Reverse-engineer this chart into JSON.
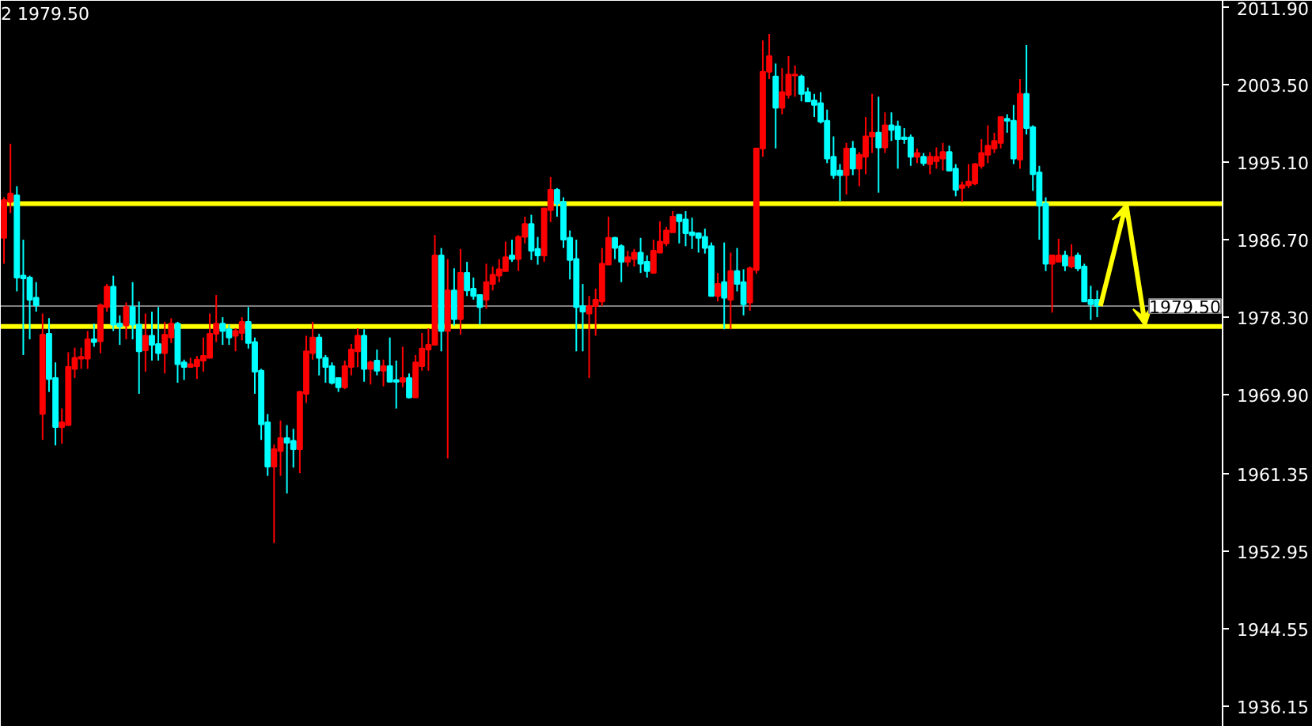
{
  "chart_data": {
    "type": "candlestick",
    "title": "2 1979.50",
    "categories": [
      null,
      null,
      null,
      null,
      null,
      null,
      null,
      null,
      null,
      null,
      null,
      null,
      null,
      null,
      null,
      null,
      null,
      null,
      null,
      null,
      null,
      null,
      null,
      null,
      null,
      null,
      null,
      null,
      null,
      null,
      null,
      null,
      null,
      null,
      null,
      null,
      null,
      null,
      null,
      null,
      null,
      null,
      null,
      null,
      null,
      null,
      null,
      null,
      null,
      null,
      null,
      null,
      null,
      null,
      null,
      null,
      null,
      null,
      null,
      null,
      null,
      null,
      null,
      null,
      null,
      null,
      null,
      null,
      null,
      null,
      null,
      null,
      null,
      null,
      null,
      null,
      null,
      null,
      null,
      null,
      null,
      null,
      null,
      null,
      null,
      null,
      null,
      null,
      null,
      null,
      null,
      null,
      null,
      null,
      null,
      null,
      null,
      null,
      null,
      null,
      null,
      null,
      null,
      null,
      null,
      null,
      null,
      null,
      null,
      null,
      null,
      null,
      null,
      null,
      null,
      null,
      null,
      null,
      null,
      null,
      null,
      null,
      null,
      null,
      null,
      null,
      null,
      null,
      null,
      null,
      null,
      null,
      null,
      null,
      null,
      null,
      null,
      null,
      null,
      null,
      null,
      null,
      null,
      null,
      null,
      null,
      null,
      null,
      null,
      null,
      null,
      null,
      null,
      null,
      null,
      null,
      null,
      null,
      null,
      null,
      null,
      null,
      null,
      null,
      null,
      null,
      null,
      null,
      null,
      null,
      null,
      null,
      null,
      null,
      null,
      null,
      null,
      null,
      null,
      null,
      null,
      null,
      null,
      null,
      null,
      null,
      null,
      null,
      null,
      null
    ],
    "ohlc": [
      [
        1986.9,
        1991.3,
        1984.1,
        1991.0
      ],
      [
        1990.8,
        1997.1,
        1989.6,
        1991.7
      ],
      [
        1991.5,
        1992.5,
        1981.1,
        1982.6
      ],
      [
        1982.8,
        1986.7,
        1974.2,
        1982.5
      ],
      [
        1982.6,
        1982.8,
        1975.9,
        1980.2
      ],
      [
        1980.4,
        1982.1,
        1978.9,
        1979.6
      ],
      [
        1967.8,
        1978.7,
        1965.0,
        1976.4
      ],
      [
        1976.5,
        1978.2,
        1970.2,
        1971.6
      ],
      [
        1971.7,
        1973.4,
        1964.4,
        1966.4
      ],
      [
        1966.4,
        1968.4,
        1964.6,
        1966.9
      ],
      [
        1966.6,
        1974.5,
        1966.6,
        1972.9
      ],
      [
        1972.7,
        1975.0,
        1971.7,
        1973.9
      ],
      [
        1973.8,
        1975.0,
        1972.7,
        1974.0
      ],
      [
        1973.8,
        1976.8,
        1972.7,
        1975.9
      ],
      [
        1975.9,
        1977.6,
        1975.1,
        1975.6
      ],
      [
        1975.7,
        1979.8,
        1974.4,
        1979.6
      ],
      [
        1979.4,
        1981.9,
        1978.9,
        1981.6
      ],
      [
        1981.6,
        1982.8,
        1976.8,
        1977.5
      ],
      [
        1977.6,
        1978.5,
        1975.3,
        1977.3
      ],
      [
        1977.4,
        1979.9,
        1975.9,
        1979.4
      ],
      [
        1979.4,
        1982.1,
        1975.9,
        1977.5
      ],
      [
        1977.5,
        1980.0,
        1970.0,
        1974.6
      ],
      [
        1974.7,
        1978.7,
        1972.4,
        1976.3
      ],
      [
        1976.3,
        1978.9,
        1973.6,
        1975.3
      ],
      [
        1975.4,
        1979.4,
        1973.6,
        1974.4
      ],
      [
        1974.4,
        1977.8,
        1972.2,
        1976.4
      ],
      [
        1976.1,
        1978.2,
        1975.5,
        1977.6
      ],
      [
        1977.6,
        1977.8,
        1971.2,
        1973.2
      ],
      [
        1973.4,
        1973.7,
        1971.5,
        1972.9
      ],
      [
        1972.9,
        1973.9,
        1972.9,
        1973.2
      ],
      [
        1973.0,
        1974.1,
        1971.6,
        1973.7
      ],
      [
        1973.6,
        1976.1,
        1972.4,
        1974.1
      ],
      [
        1973.9,
        1978.7,
        1973.9,
        1976.5
      ],
      [
        1976.5,
        1980.7,
        1975.6,
        1977.6
      ],
      [
        1977.6,
        1978.3,
        1975.3,
        1976.8
      ],
      [
        1977.0,
        1977.5,
        1975.3,
        1976.1
      ],
      [
        1976.3,
        1977.1,
        1974.6,
        1976.8
      ],
      [
        1976.6,
        1978.3,
        1975.8,
        1977.8
      ],
      [
        1977.8,
        1979.4,
        1974.9,
        1975.5
      ],
      [
        1975.6,
        1976.1,
        1970.0,
        1972.4
      ],
      [
        1972.5,
        1972.7,
        1965.0,
        1966.7
      ],
      [
        1966.9,
        1967.8,
        1961.1,
        1962.1
      ],
      [
        1962.1,
        1964.5,
        1953.8,
        1964.0
      ],
      [
        1963.8,
        1967.1,
        1961.1,
        1965.2
      ],
      [
        1965.2,
        1966.6,
        1959.2,
        1964.7
      ],
      [
        1964.9,
        1966.2,
        1962.0,
        1964.0
      ],
      [
        1964.0,
        1970.3,
        1961.4,
        1970.2
      ],
      [
        1970.0,
        1976.3,
        1969.0,
        1974.6
      ],
      [
        1974.4,
        1977.8,
        1973.7,
        1976.1
      ],
      [
        1976.1,
        1976.5,
        1972.0,
        1973.9
      ],
      [
        1973.9,
        1974.2,
        1971.2,
        1972.9
      ],
      [
        1973.0,
        1973.4,
        1971.0,
        1971.2
      ],
      [
        1971.7,
        1971.7,
        1970.2,
        1970.7
      ],
      [
        1970.7,
        1973.6,
        1970.5,
        1973.0
      ],
      [
        1972.9,
        1975.4,
        1972.0,
        1974.8
      ],
      [
        1974.6,
        1977.1,
        1972.9,
        1976.3
      ],
      [
        1976.3,
        1977.0,
        1971.3,
        1972.7
      ],
      [
        1972.7,
        1973.6,
        1971.0,
        1973.4
      ],
      [
        1973.6,
        1974.8,
        1972.0,
        1972.5
      ],
      [
        1972.5,
        1973.7,
        1970.8,
        1973.0
      ],
      [
        1973.0,
        1976.1,
        1971.3,
        1971.3
      ],
      [
        1971.5,
        1973.6,
        1968.4,
        1971.3
      ],
      [
        1971.3,
        1975.1,
        1970.7,
        1971.7
      ],
      [
        1971.7,
        1972.2,
        1969.5,
        1969.6
      ],
      [
        1969.6,
        1974.2,
        1969.6,
        1973.4
      ],
      [
        1973.0,
        1976.6,
        1972.5,
        1974.9
      ],
      [
        1974.8,
        1977.1,
        1972.5,
        1975.3
      ],
      [
        1975.3,
        1987.2,
        1975.3,
        1985.0
      ],
      [
        1985.0,
        1985.8,
        1974.6,
        1976.8
      ],
      [
        1976.8,
        1984.6,
        1963.0,
        1981.2
      ],
      [
        1981.2,
        1983.6,
        1977.4,
        1978.1
      ],
      [
        1978.1,
        1985.7,
        1976.4,
        1983.1
      ],
      [
        1983.1,
        1984.3,
        1980.6,
        1981.2
      ],
      [
        1981.4,
        1982.6,
        1980.2,
        1980.6
      ],
      [
        1980.7,
        1980.7,
        1977.5,
        1979.4
      ],
      [
        1980.2,
        1984.1,
        1979.2,
        1982.1
      ],
      [
        1981.9,
        1983.8,
        1981.2,
        1982.9
      ],
      [
        1982.8,
        1984.6,
        1982.1,
        1983.5
      ],
      [
        1983.3,
        1986.5,
        1983.3,
        1984.8
      ],
      [
        1985.0,
        1986.7,
        1984.3,
        1984.6
      ],
      [
        1984.6,
        1987.2,
        1983.3,
        1987.0
      ],
      [
        1987.0,
        1989.2,
        1986.3,
        1988.4
      ],
      [
        1988.4,
        1989.4,
        1984.5,
        1985.5
      ],
      [
        1985.7,
        1987.0,
        1984.0,
        1985.0
      ],
      [
        1985.0,
        1990.1,
        1984.3,
        1990.1
      ],
      [
        1989.9,
        1993.5,
        1988.6,
        1992.1
      ],
      [
        1992.1,
        1992.3,
        1989.2,
        1990.6
      ],
      [
        1990.8,
        1991.3,
        1985.8,
        1986.7
      ],
      [
        1986.9,
        1987.7,
        1982.4,
        1984.5
      ],
      [
        1984.6,
        1986.7,
        1974.6,
        1979.4
      ],
      [
        1979.5,
        1981.9,
        1974.6,
        1978.9
      ],
      [
        1978.7,
        1980.6,
        1971.7,
        1979.5
      ],
      [
        1979.5,
        1981.4,
        1976.3,
        1980.2
      ],
      [
        1980.0,
        1985.8,
        1979.5,
        1984.1
      ],
      [
        1984.0,
        1989.2,
        1984.0,
        1986.9
      ],
      [
        1986.9,
        1987.0,
        1984.6,
        1985.8
      ],
      [
        1986.0,
        1986.2,
        1982.1,
        1984.3
      ],
      [
        1984.3,
        1985.5,
        1983.8,
        1984.8
      ],
      [
        1984.6,
        1985.7,
        1983.8,
        1985.3
      ],
      [
        1985.3,
        1986.9,
        1983.1,
        1984.1
      ],
      [
        1984.3,
        1985.0,
        1982.6,
        1983.3
      ],
      [
        1983.1,
        1986.7,
        1983.0,
        1985.5
      ],
      [
        1985.3,
        1988.7,
        1985.3,
        1986.5
      ],
      [
        1986.3,
        1988.1,
        1986.0,
        1987.7
      ],
      [
        1987.5,
        1989.8,
        1987.5,
        1989.2
      ],
      [
        1989.4,
        1989.4,
        1986.3,
        1988.7
      ],
      [
        1988.9,
        1989.8,
        1986.0,
        1987.4
      ],
      [
        1987.5,
        1989.1,
        1985.7,
        1987.2
      ],
      [
        1987.4,
        1987.5,
        1985.3,
        1986.9
      ],
      [
        1987.0,
        1987.9,
        1985.2,
        1985.8
      ],
      [
        1986.0,
        1986.4,
        1980.6,
        1980.6
      ],
      [
        1980.6,
        1983.1,
        1980.0,
        1981.9
      ],
      [
        1982.1,
        1986.4,
        1977.0,
        1980.4
      ],
      [
        1980.2,
        1985.3,
        1977.0,
        1983.3
      ],
      [
        1983.3,
        1985.8,
        1981.1,
        1981.9
      ],
      [
        1982.1,
        1983.5,
        1978.5,
        1979.7
      ],
      [
        1979.9,
        1983.8,
        1979.0,
        1983.6
      ],
      [
        1983.4,
        1996.6,
        1983.0,
        1996.6
      ],
      [
        1996.6,
        2008.3,
        1995.7,
        2004.9
      ],
      [
        2004.9,
        2009.0,
        2004.1,
        2006.6
      ],
      [
        2004.4,
        2005.8,
        1996.6,
        2001.0
      ],
      [
        2001.0,
        2005.3,
        2000.3,
        2002.7
      ],
      [
        2002.4,
        2006.6,
        2002.0,
        2004.6
      ],
      [
        2004.5,
        2005.6,
        2002.2,
        2004.6
      ],
      [
        2004.4,
        2004.6,
        2001.7,
        2002.5
      ],
      [
        2002.7,
        2003.2,
        2001.7,
        2001.7
      ],
      [
        2001.8,
        2002.5,
        2000.0,
        2001.3
      ],
      [
        2001.5,
        2002.7,
        1999.3,
        1999.5
      ],
      [
        1999.6,
        2000.8,
        1995.0,
        1995.5
      ],
      [
        1995.7,
        1997.9,
        1993.3,
        1993.7
      ],
      [
        1994.2,
        1994.9,
        1990.9,
        1993.7
      ],
      [
        1993.7,
        1997.2,
        1991.6,
        1996.6
      ],
      [
        1996.6,
        1997.4,
        1993.7,
        1994.4
      ],
      [
        1994.4,
        1996.2,
        1992.5,
        1995.9
      ],
      [
        1995.7,
        2000.0,
        1993.8,
        1997.9
      ],
      [
        1997.9,
        2002.5,
        1996.1,
        1998.3
      ],
      [
        1998.3,
        2002.2,
        1991.8,
        1996.7
      ],
      [
        1996.7,
        2000.5,
        1996.1,
        1999.1
      ],
      [
        1999.1,
        2000.5,
        1997.4,
        1998.6
      ],
      [
        1999.0,
        1999.6,
        1994.4,
        1997.6
      ],
      [
        1997.8,
        1998.8,
        1997.1,
        1997.6
      ],
      [
        1997.8,
        1998.1,
        1994.7,
        1995.7
      ],
      [
        1995.7,
        1996.6,
        1995.0,
        1996.1
      ],
      [
        1995.7,
        1996.1,
        1994.7,
        1995.0
      ],
      [
        1994.9,
        1996.2,
        1993.8,
        1995.7
      ],
      [
        1995.2,
        1996.7,
        1994.4,
        1995.7
      ],
      [
        1995.5,
        1997.2,
        1994.2,
        1996.2
      ],
      [
        1996.2,
        1996.9,
        1994.2,
        1994.2
      ],
      [
        1994.4,
        1994.9,
        1991.4,
        1992.1
      ],
      [
        1992.3,
        1993.0,
        1990.8,
        1992.6
      ],
      [
        1992.6,
        1994.9,
        1992.3,
        1993.0
      ],
      [
        1992.8,
        1995.0,
        1992.6,
        1994.9
      ],
      [
        1994.7,
        1997.6,
        1994.4,
        1996.1
      ],
      [
        1995.9,
        1999.1,
        1995.0,
        1996.9
      ],
      [
        1996.6,
        1998.3,
        1996.1,
        1997.4
      ],
      [
        1997.2,
        2000.0,
        1996.6,
        2000.0
      ],
      [
        1999.8,
        2000.3,
        1998.3,
        1999.6
      ],
      [
        1999.6,
        2001.3,
        1994.9,
        1995.5
      ],
      [
        1995.4,
        2004.1,
        1994.4,
        2002.5
      ],
      [
        2002.5,
        2007.8,
        1998.1,
        1998.8
      ],
      [
        1998.9,
        1999.1,
        1992.0,
        1993.8
      ],
      [
        1994.0,
        1994.7,
        1986.7,
        1990.4
      ],
      [
        1990.6,
        1991.3,
        1983.3,
        1984.1
      ],
      [
        1984.1,
        1985.1,
        1978.8,
        1985.0
      ],
      [
        1984.3,
        1986.8,
        1984.3,
        1985.0
      ],
      [
        1985.0,
        1985.5,
        1983.3,
        1983.9
      ],
      [
        1983.8,
        1986.2,
        1983.6,
        1984.8
      ],
      [
        1985.0,
        1985.3,
        1983.3,
        1983.6
      ],
      [
        1983.8,
        1984.1,
        1980.0,
        1980.0
      ],
      [
        1980.2,
        1981.7,
        1978.0,
        1979.7
      ],
      [
        1980.2,
        1981.2,
        1978.3,
        1979.5
      ],
      null,
      null,
      null,
      null,
      null,
      null,
      null,
      null,
      null,
      null,
      null,
      null,
      null,
      null,
      null,
      null,
      null,
      null,
      null
    ],
    "colors": [
      "#ff0000",
      "#ff0000",
      "#00ffff",
      "#00ffff",
      "#00ffff",
      "#00ffff",
      "#ff0000",
      "#00ffff",
      "#00ffff",
      "#ff0000",
      "#ff0000",
      "#ff0000",
      "#ff0000",
      "#ff0000",
      "#00ffff",
      "#ff0000",
      "#ff0000",
      "#00ffff",
      "#00ffff",
      "#ff0000",
      "#00ffff",
      "#00ffff",
      "#ff0000",
      "#00ffff",
      "#00ffff",
      "#ff0000",
      "#ff0000",
      "#00ffff",
      "#00ffff",
      "#ff0000",
      "#ff0000",
      "#ff0000",
      "#ff0000",
      "#ff0000",
      "#00ffff",
      "#00ffff",
      "#ff0000",
      "#ff0000",
      "#00ffff",
      "#00ffff",
      "#00ffff",
      "#00ffff",
      "#ff0000",
      "#ff0000",
      "#00ffff",
      "#00ffff",
      "#ff0000",
      "#ff0000",
      "#ff0000",
      "#00ffff",
      "#00ffff",
      "#00ffff",
      "#00ffff",
      "#ff0000",
      "#ff0000",
      "#ff0000",
      "#00ffff",
      "#ff0000",
      "#00ffff",
      "#ff0000",
      "#00ffff",
      "#00ffff",
      "#ff0000",
      "#00ffff",
      "#ff0000",
      "#ff0000",
      "#ff0000",
      "#ff0000",
      "#00ffff",
      "#ff0000",
      "#00ffff",
      "#ff0000",
      "#00ffff",
      "#00ffff",
      "#00ffff",
      "#ff0000",
      "#ff0000",
      "#ff0000",
      "#ff0000",
      "#00ffff",
      "#ff0000",
      "#ff0000",
      "#00ffff",
      "#00ffff",
      "#ff0000",
      "#ff0000",
      "#00ffff",
      "#00ffff",
      "#00ffff",
      "#00ffff",
      "#00ffff",
      "#ff0000",
      "#ff0000",
      "#ff0000",
      "#ff0000",
      "#00ffff",
      "#00ffff",
      "#ff0000",
      "#ff0000",
      "#00ffff",
      "#00ffff",
      "#ff0000",
      "#ff0000",
      "#ff0000",
      "#ff0000",
      "#00ffff",
      "#00ffff",
      "#00ffff",
      "#00ffff",
      "#00ffff",
      "#00ffff",
      "#ff0000",
      "#00ffff",
      "#ff0000",
      "#00ffff",
      "#00ffff",
      "#ff0000",
      "#ff0000",
      "#ff0000",
      "#ff0000",
      "#00ffff",
      "#ff0000",
      "#ff0000",
      "#ff0000",
      "#00ffff",
      "#00ffff",
      "#00ffff",
      "#00ffff",
      "#00ffff",
      "#00ffff",
      "#00ffff",
      "#ff0000",
      "#00ffff",
      "#ff0000",
      "#ff0000",
      "#ff0000",
      "#00ffff",
      "#ff0000",
      "#00ffff",
      "#00ffff",
      "#00ffff",
      "#00ffff",
      "#ff0000",
      "#00ffff",
      "#ff0000",
      "#ff0000",
      "#ff0000",
      "#00ffff",
      "#00ffff",
      "#ff0000",
      "#ff0000",
      "#ff0000",
      "#ff0000",
      "#ff0000",
      "#ff0000",
      "#ff0000",
      "#00ffff",
      "#00ffff",
      "#ff0000",
      "#00ffff",
      "#00ffff",
      "#00ffff",
      "#00ffff",
      "#ff0000",
      "#ff0000",
      "#00ffff",
      "#ff0000",
      "#00ffff",
      "#00ffff",
      "#00ffff",
      "#00ffff",
      null,
      null,
      null,
      null,
      null,
      null,
      null,
      null,
      null,
      null,
      null,
      null,
      null,
      null,
      null,
      null,
      null,
      null,
      null
    ],
    "ylim": [
      1933.9,
      2012.6
    ],
    "yticks": [
      {
        "value": 2011.9,
        "label": "2011.90"
      },
      {
        "value": 2003.5,
        "label": "2003.50"
      },
      {
        "value": 1995.1,
        "label": "1995.10"
      },
      {
        "value": 1986.7,
        "label": "1986.70"
      },
      {
        "value": 1978.3,
        "label": "1978.30"
      },
      {
        "value": 1969.9,
        "label": "1969.90"
      },
      1961.35,
      1952.95,
      1944.55,
      1936.15
    ],
    "ref_lines": [
      {
        "axis": "y",
        "value": 1990.6,
        "color": "#ffff00"
      },
      {
        "axis": "y",
        "value": 1977.3,
        "color": "#ffff00"
      },
      {
        "axis": "y",
        "value": 1979.5,
        "label": "1979.50",
        "color": "#808080"
      }
    ],
    "tick_labels": "y"
  }
}
